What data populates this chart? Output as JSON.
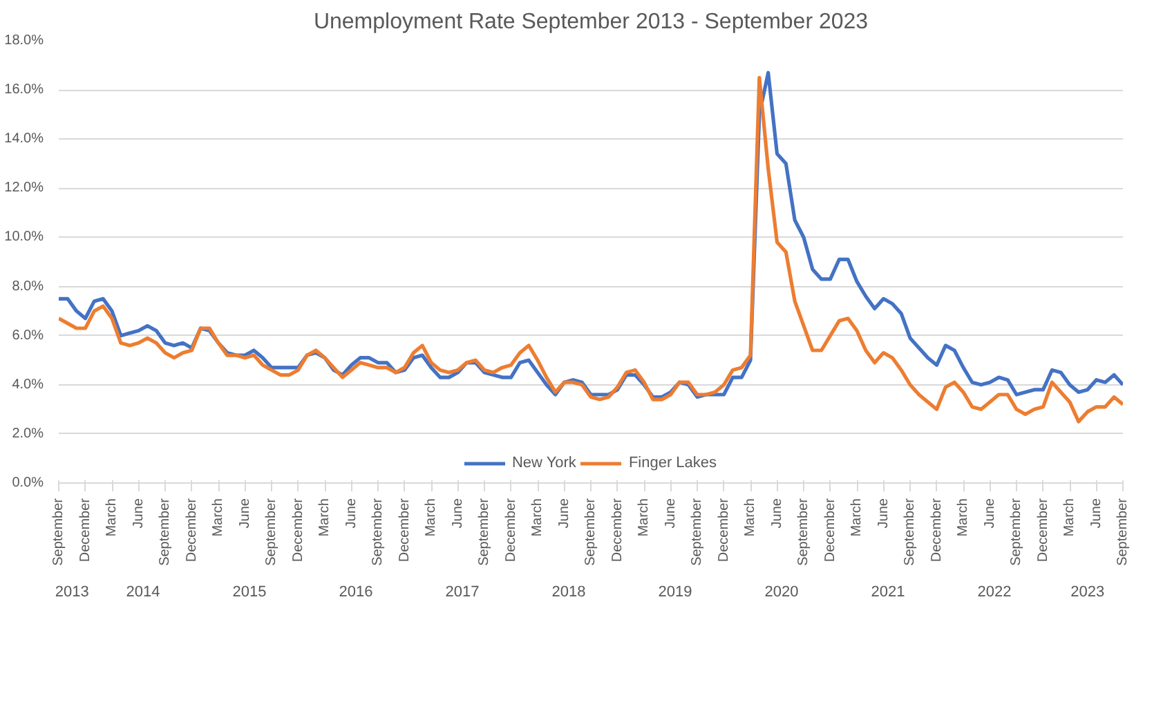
{
  "chart_data": {
    "type": "line",
    "title": "Unemployment Rate September 2013 - September 2023",
    "x": [
      "2013-09",
      "2013-10",
      "2013-11",
      "2013-12",
      "2014-01",
      "2014-02",
      "2014-03",
      "2014-04",
      "2014-05",
      "2014-06",
      "2014-07",
      "2014-08",
      "2014-09",
      "2014-10",
      "2014-11",
      "2014-12",
      "2015-01",
      "2015-02",
      "2015-03",
      "2015-04",
      "2015-05",
      "2015-06",
      "2015-07",
      "2015-08",
      "2015-09",
      "2015-10",
      "2015-11",
      "2015-12",
      "2016-01",
      "2016-02",
      "2016-03",
      "2016-04",
      "2016-05",
      "2016-06",
      "2016-07",
      "2016-08",
      "2016-09",
      "2016-10",
      "2016-11",
      "2016-12",
      "2017-01",
      "2017-02",
      "2017-03",
      "2017-04",
      "2017-05",
      "2017-06",
      "2017-07",
      "2017-08",
      "2017-09",
      "2017-10",
      "2017-11",
      "2017-12",
      "2018-01",
      "2018-02",
      "2018-03",
      "2018-04",
      "2018-05",
      "2018-06",
      "2018-07",
      "2018-08",
      "2018-09",
      "2018-10",
      "2018-11",
      "2018-12",
      "2019-01",
      "2019-02",
      "2019-03",
      "2019-04",
      "2019-05",
      "2019-06",
      "2019-07",
      "2019-08",
      "2019-09",
      "2019-10",
      "2019-11",
      "2019-12",
      "2020-01",
      "2020-02",
      "2020-03",
      "2020-04",
      "2020-05",
      "2020-06",
      "2020-07",
      "2020-08",
      "2020-09",
      "2020-10",
      "2020-11",
      "2020-12",
      "2021-01",
      "2021-02",
      "2021-03",
      "2021-04",
      "2021-05",
      "2021-06",
      "2021-07",
      "2021-08",
      "2021-09",
      "2021-10",
      "2021-11",
      "2021-12",
      "2022-01",
      "2022-02",
      "2022-03",
      "2022-04",
      "2022-05",
      "2022-06",
      "2022-07",
      "2022-08",
      "2022-09",
      "2022-10",
      "2022-11",
      "2022-12",
      "2023-01",
      "2023-02",
      "2023-03",
      "2023-04",
      "2023-05",
      "2023-06",
      "2023-07",
      "2023-08",
      "2023-09"
    ],
    "series": [
      {
        "name": "New York",
        "color": "#4472c4",
        "values": [
          7.5,
          7.5,
          7.0,
          6.7,
          7.4,
          7.5,
          7.0,
          6.0,
          6.1,
          6.2,
          6.4,
          6.2,
          5.7,
          5.6,
          5.7,
          5.5,
          6.3,
          6.2,
          5.7,
          5.3,
          5.2,
          5.2,
          5.4,
          5.1,
          4.7,
          4.7,
          4.7,
          4.7,
          5.2,
          5.3,
          5.1,
          4.6,
          4.4,
          4.8,
          5.1,
          5.1,
          4.9,
          4.9,
          4.5,
          4.6,
          5.1,
          5.2,
          4.7,
          4.3,
          4.3,
          4.5,
          4.9,
          4.9,
          4.5,
          4.4,
          4.3,
          4.3,
          4.9,
          5.0,
          4.5,
          4.0,
          3.6,
          4.1,
          4.2,
          4.1,
          3.6,
          3.6,
          3.6,
          3.8,
          4.4,
          4.4,
          4.0,
          3.5,
          3.5,
          3.7,
          4.1,
          4.0,
          3.5,
          3.6,
          3.6,
          3.6,
          4.3,
          4.3,
          5.0,
          15.0,
          16.7,
          13.4,
          13.0,
          10.7,
          10.0,
          8.7,
          8.3,
          8.3,
          9.1,
          9.1,
          8.2,
          7.6,
          7.1,
          7.5,
          7.3,
          6.9,
          5.9,
          5.5,
          5.1,
          4.8,
          5.6,
          5.4,
          4.7,
          4.1,
          4.0,
          4.1,
          4.3,
          4.2,
          3.6,
          3.7,
          3.8,
          3.8,
          4.6,
          4.5,
          4.0,
          3.7,
          3.8,
          4.2,
          4.1,
          4.4,
          4.0
        ]
      },
      {
        "name": "Finger Lakes",
        "color": "#ed7d31",
        "values": [
          6.7,
          6.5,
          6.3,
          6.3,
          7.0,
          7.2,
          6.7,
          5.7,
          5.6,
          5.7,
          5.9,
          5.7,
          5.3,
          5.1,
          5.3,
          5.4,
          6.3,
          6.3,
          5.7,
          5.2,
          5.2,
          5.1,
          5.2,
          4.8,
          4.6,
          4.4,
          4.4,
          4.6,
          5.2,
          5.4,
          5.1,
          4.7,
          4.3,
          4.6,
          4.9,
          4.8,
          4.7,
          4.7,
          4.5,
          4.7,
          5.3,
          5.6,
          4.9,
          4.6,
          4.5,
          4.6,
          4.9,
          5.0,
          4.6,
          4.5,
          4.7,
          4.8,
          5.3,
          5.6,
          5.0,
          4.3,
          3.7,
          4.1,
          4.1,
          4.0,
          3.5,
          3.4,
          3.5,
          3.9,
          4.5,
          4.6,
          4.1,
          3.4,
          3.4,
          3.6,
          4.1,
          4.1,
          3.6,
          3.6,
          3.7,
          4.0,
          4.6,
          4.7,
          5.2,
          16.5,
          12.8,
          9.8,
          9.4,
          7.4,
          6.4,
          5.4,
          5.4,
          6.0,
          6.6,
          6.7,
          6.2,
          5.4,
          4.9,
          5.3,
          5.1,
          4.6,
          4.0,
          3.6,
          3.3,
          3.0,
          3.9,
          4.1,
          3.7,
          3.1,
          3.0,
          3.3,
          3.6,
          3.6,
          3.0,
          2.8,
          3.0,
          3.1,
          4.1,
          3.7,
          3.3,
          2.5,
          2.9,
          3.1,
          3.1,
          3.5,
          3.2
        ]
      }
    ],
    "xlim": [
      "2013-09",
      "2023-09"
    ],
    "xticks": [
      {
        "value": "2013-09",
        "label": "September"
      },
      {
        "value": "2013-12",
        "label": "December"
      },
      {
        "value": "2014-03",
        "label": "March"
      },
      {
        "value": "2014-06",
        "label": "June"
      },
      {
        "value": "2014-09",
        "label": "September"
      },
      {
        "value": "2014-12",
        "label": "December"
      },
      {
        "value": "2015-03",
        "label": "March"
      },
      {
        "value": "2015-06",
        "label": "June"
      },
      {
        "value": "2015-09",
        "label": "September"
      },
      {
        "value": "2015-12",
        "label": "December"
      },
      {
        "value": "2016-03",
        "label": "March"
      },
      {
        "value": "2016-06",
        "label": "June"
      },
      {
        "value": "2016-09",
        "label": "September"
      },
      {
        "value": "2016-12",
        "label": "December"
      },
      {
        "value": "2017-03",
        "label": "March"
      },
      {
        "value": "2017-06",
        "label": "June"
      },
      {
        "value": "2017-09",
        "label": "September"
      },
      {
        "value": "2017-12",
        "label": "December"
      },
      {
        "value": "2018-03",
        "label": "March"
      },
      {
        "value": "2018-06",
        "label": "June"
      },
      {
        "value": "2018-09",
        "label": "September"
      },
      {
        "value": "2018-12",
        "label": "December"
      },
      {
        "value": "2019-03",
        "label": "March"
      },
      {
        "value": "2019-06",
        "label": "June"
      },
      {
        "value": "2019-09",
        "label": "September"
      },
      {
        "value": "2019-12",
        "label": "December"
      },
      {
        "value": "2020-03",
        "label": "March"
      },
      {
        "value": "2020-06",
        "label": "June"
      },
      {
        "value": "2020-09",
        "label": "September"
      },
      {
        "value": "2020-12",
        "label": "December"
      },
      {
        "value": "2021-03",
        "label": "March"
      },
      {
        "value": "2021-06",
        "label": "June"
      },
      {
        "value": "2021-09",
        "label": "September"
      },
      {
        "value": "2021-12",
        "label": "December"
      },
      {
        "value": "2022-03",
        "label": "March"
      },
      {
        "value": "2022-06",
        "label": "June"
      },
      {
        "value": "2022-09",
        "label": "September"
      },
      {
        "value": "2022-12",
        "label": "December"
      },
      {
        "value": "2023-03",
        "label": "March"
      },
      {
        "value": "2023-06",
        "label": "June"
      },
      {
        "value": "2023-09",
        "label": "September"
      }
    ],
    "ylim": [
      0,
      18
    ],
    "yticks": [
      {
        "value": 0,
        "label": "0.0%"
      },
      {
        "value": 2,
        "label": "2.0%"
      },
      {
        "value": 4,
        "label": "4.0%"
      },
      {
        "value": 6,
        "label": "6.0%"
      },
      {
        "value": 8,
        "label": "8.0%"
      },
      {
        "value": 10,
        "label": "10.0%"
      },
      {
        "value": 12,
        "label": "12.0%"
      },
      {
        "value": 14,
        "label": "14.0%"
      },
      {
        "value": 16,
        "label": "16.0%"
      },
      {
        "value": 18,
        "label": "18.0%"
      }
    ],
    "annotations": [
      "2013",
      "2014",
      "2015",
      "2016",
      "2017",
      "2018",
      "2019",
      "2020",
      "2021",
      "2022",
      "2023"
    ],
    "grid": "y",
    "legend": "bottom",
    "marker": "none",
    "line_style": "solid"
  }
}
